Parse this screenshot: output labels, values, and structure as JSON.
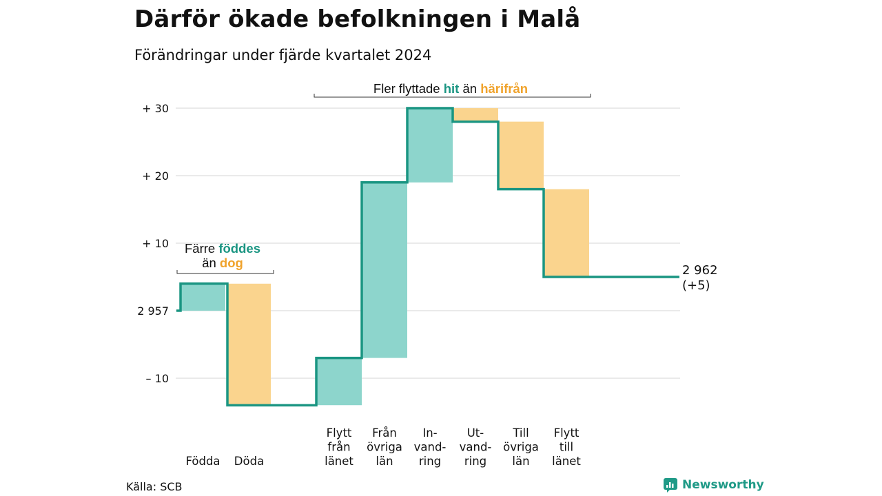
{
  "title": "Därför ökade befolkningen i Malå",
  "subtitle": "Förändringar under fjärde kvartalet 2024",
  "source": "Källa: SCB",
  "brand": {
    "name": "Newsworthy",
    "icon": "newsworthy-logo-icon"
  },
  "colors": {
    "increase": "#8dd5cc",
    "decrease": "#fad48e",
    "line": "#1a9582",
    "accent_teal": "#1a9582",
    "accent_orange": "#f0a32c",
    "grid": "#dddddd"
  },
  "chart_data": {
    "type": "waterfall",
    "baseline_label": "2 957",
    "y_ticks": [
      {
        "value": 30,
        "label": "+ 30"
      },
      {
        "value": 20,
        "label": "+ 20"
      },
      {
        "value": 10,
        "label": "+ 10"
      },
      {
        "value": 0,
        "label": "2 957"
      },
      {
        "value": -10,
        "label": "– 10"
      }
    ],
    "ylim": [
      -14,
      30
    ],
    "grid": true,
    "steps": [
      {
        "category": "Födda",
        "label_lines": [
          "Födda"
        ],
        "start": 0,
        "end": 4,
        "type": "increase"
      },
      {
        "category": "Döda",
        "label_lines": [
          "Döda"
        ],
        "start": 4,
        "end": -14,
        "type": "decrease"
      },
      {
        "category": "Flytt från länet",
        "label_lines": [
          "Flytt",
          "från",
          "länet"
        ],
        "start": -14,
        "end": -7,
        "type": "increase"
      },
      {
        "category": "Från övriga län",
        "label_lines": [
          "Från",
          "övriga",
          "län"
        ],
        "start": -7,
        "end": 19,
        "type": "increase"
      },
      {
        "category": "Invandring",
        "label_lines": [
          "In-",
          "vand-",
          "ring"
        ],
        "start": 19,
        "end": 30,
        "type": "increase"
      },
      {
        "category": "Utvandring",
        "label_lines": [
          "Ut-",
          "vand-",
          "ring"
        ],
        "start": 30,
        "end": 28,
        "type": "decrease"
      },
      {
        "category": "Till övriga län",
        "label_lines": [
          "Till",
          "övriga",
          "län"
        ],
        "start": 28,
        "end": 18,
        "type": "decrease"
      },
      {
        "category": "Flytt till länet",
        "label_lines": [
          "Flytt",
          "till",
          "länet"
        ],
        "start": 18,
        "end": 5,
        "type": "decrease"
      }
    ],
    "final": {
      "value": 5,
      "label_lines": [
        "2 962",
        "(+5)"
      ]
    },
    "annotations": [
      {
        "id": "birth",
        "line1": [
          {
            "text": "Färre ",
            "style": "plain"
          },
          {
            "text": "föddes",
            "style": "teal"
          }
        ],
        "line2": [
          {
            "text": "än ",
            "style": "plain"
          },
          {
            "text": "dog",
            "style": "orange"
          }
        ]
      },
      {
        "id": "migration",
        "line1": [
          {
            "text": "Fler flyttade ",
            "style": "plain"
          },
          {
            "text": "hit",
            "style": "teal"
          },
          {
            "text": " än ",
            "style": "plain"
          },
          {
            "text": "härifrån",
            "style": "orange"
          }
        ]
      }
    ]
  }
}
